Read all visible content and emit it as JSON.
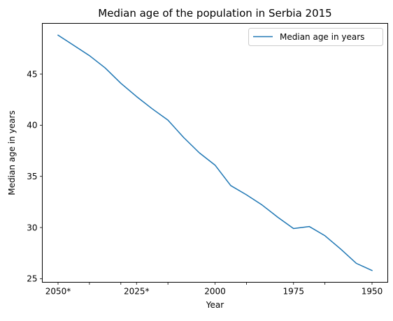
{
  "chart_data": {
    "type": "line",
    "title": "Median age of the population in Serbia 2015",
    "xlabel": "Year",
    "ylabel": "Median age in years",
    "x": [
      "2050*",
      "2045*",
      "2040*",
      "2035*",
      "2030*",
      "2025*",
      "2020*",
      "2015",
      "2010",
      "2005",
      "2000",
      "1995",
      "1990",
      "1985",
      "1980",
      "1975",
      "1970",
      "1965",
      "1960",
      "1955",
      "1950"
    ],
    "x_tick_labels": [
      {
        "x": "2050*",
        "label": "2050*"
      },
      {
        "x": "2040*",
        "label": ""
      },
      {
        "x": "2030*",
        "label": ""
      },
      {
        "x": "2025*",
        "label": "2025*"
      },
      {
        "x": "2015",
        "label": ""
      },
      {
        "x": "2000",
        "label": "2000"
      },
      {
        "x": "1990",
        "label": ""
      },
      {
        "x": "1975",
        "label": "1975"
      },
      {
        "x": "1965",
        "label": ""
      },
      {
        "x": "1950",
        "label": "1950"
      }
    ],
    "series": [
      {
        "name": "Median age in years",
        "color": "#1f77b4",
        "values": [
          48.8,
          47.8,
          46.8,
          45.6,
          44.1,
          42.8,
          41.6,
          40.5,
          38.8,
          37.3,
          36.1,
          34.1,
          33.2,
          32.2,
          31.0,
          29.9,
          30.1,
          29.2,
          27.9,
          26.5,
          25.8
        ]
      }
    ],
    "ylim": [
      24.65,
      49.95
    ],
    "y_ticks": [
      25,
      30,
      35,
      40,
      45
    ],
    "grid": false,
    "legend": "upper right"
  }
}
